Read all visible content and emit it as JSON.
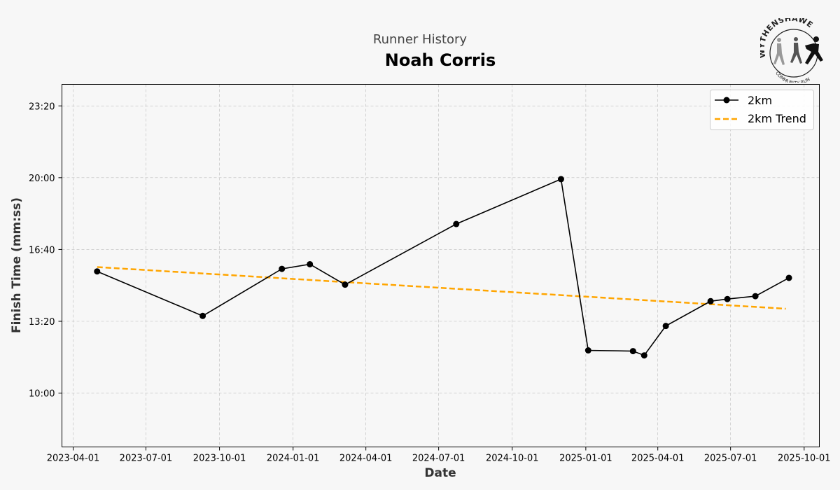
{
  "header": {
    "suptitle": "Runner History",
    "title": "Noah Corris"
  },
  "logo": {
    "text_top": "WYTHENSHAWE",
    "text_bottom": "COMMUNITY RUN"
  },
  "chart_data": {
    "type": "line",
    "title": "Noah Corris",
    "xlabel": "Date",
    "ylabel": "Finish Time (mm:ss)",
    "x_ticks": [
      "2023-04-01",
      "2023-07-01",
      "2023-10-01",
      "2024-01-01",
      "2024-04-01",
      "2024-07-01",
      "2024-10-01",
      "2025-01-01",
      "2025-04-01",
      "2025-07-01",
      "2025-10-01"
    ],
    "y_ticks": [
      "10:00",
      "13:20",
      "16:40",
      "20:00",
      "23:20"
    ],
    "xlim": [
      "2023-03-18",
      "2025-10-20"
    ],
    "ylim_seconds": [
      450,
      1460
    ],
    "grid": true,
    "legend_position": "upper right",
    "series": [
      {
        "name": "2km",
        "color": "#000000",
        "marker": "circle",
        "points": [
          {
            "date": "2023-05-01",
            "time": "15:39"
          },
          {
            "date": "2023-09-10",
            "time": "13:35"
          },
          {
            "date": "2023-12-18",
            "time": "15:46"
          },
          {
            "date": "2024-01-22",
            "time": "15:59"
          },
          {
            "date": "2024-03-06",
            "time": "15:02"
          },
          {
            "date": "2024-07-23",
            "time": "17:51"
          },
          {
            "date": "2024-12-01",
            "time": "19:56"
          },
          {
            "date": "2025-01-04",
            "time": "11:59"
          },
          {
            "date": "2025-03-01",
            "time": "11:57"
          },
          {
            "date": "2025-03-15",
            "time": "11:45"
          },
          {
            "date": "2025-04-11",
            "time": "13:07"
          },
          {
            "date": "2025-06-06",
            "time": "14:16"
          },
          {
            "date": "2025-06-27",
            "time": "14:22"
          },
          {
            "date": "2025-08-01",
            "time": "14:30"
          },
          {
            "date": "2025-09-12",
            "time": "15:21"
          }
        ]
      },
      {
        "name": "2km Trend",
        "color": "#FFA500",
        "style": "dashed",
        "points": [
          {
            "date": "2023-05-01",
            "time": "15:51"
          },
          {
            "date": "2025-09-08",
            "time": "13:55"
          }
        ]
      }
    ]
  }
}
